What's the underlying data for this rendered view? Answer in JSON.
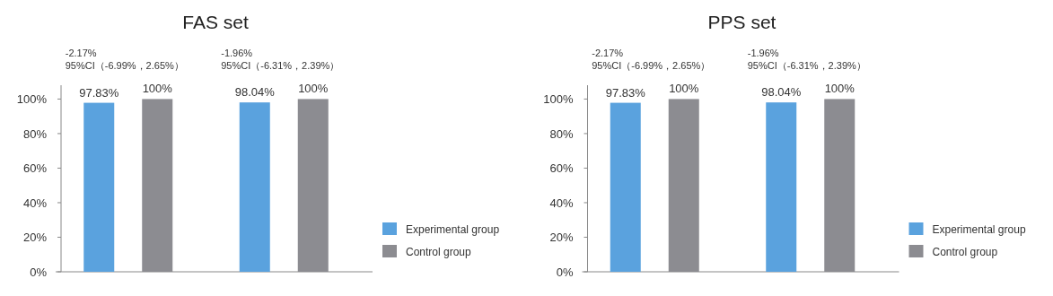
{
  "chart_data": [
    {
      "type": "bar",
      "title": "FAS set",
      "categories": [
        null,
        null
      ],
      "series": [
        {
          "name": "Experimental group",
          "color": "#5aa2de",
          "values": [
            97.83,
            98.04
          ]
        },
        {
          "name": "Control group",
          "color": "#8c8c91",
          "values": [
            100,
            100
          ]
        }
      ],
      "ylim": [
        0,
        108
      ],
      "yticks": [
        {
          "value": 0,
          "label": "0%"
        },
        {
          "value": 20,
          "label": "20%"
        },
        {
          "value": 40,
          "label": "40%"
        },
        {
          "value": 60,
          "label": "60%"
        },
        {
          "value": 80,
          "label": "80%"
        },
        {
          "value": 100,
          "label": "100%"
        }
      ],
      "value_labels": [
        [
          "97.83%",
          "98.04%"
        ],
        [
          "100%",
          "100%"
        ]
      ],
      "annotations": [
        "-2.17%\n95%CI（-6.99%，2.65%）",
        "-1.96%\n95%CI（-6.31%，2.39%）"
      ],
      "legend": "right",
      "grid": false
    },
    {
      "type": "bar",
      "title": "PPS set",
      "categories": [
        null,
        null
      ],
      "series": [
        {
          "name": "Experimental group",
          "color": "#5aa2de",
          "values": [
            97.83,
            98.04
          ]
        },
        {
          "name": "Control group",
          "color": "#8c8c91",
          "values": [
            100,
            100
          ]
        }
      ],
      "ylim": [
        0,
        108
      ],
      "yticks": [
        {
          "value": 0,
          "label": "0%"
        },
        {
          "value": 20,
          "label": "20%"
        },
        {
          "value": 40,
          "label": "40%"
        },
        {
          "value": 60,
          "label": "60%"
        },
        {
          "value": 80,
          "label": "80%"
        },
        {
          "value": 100,
          "label": "100%"
        }
      ],
      "value_labels": [
        [
          "97.83%",
          "98.04%"
        ],
        [
          "100%",
          "100%"
        ]
      ],
      "annotations": [
        "-2.17%\n95%CI（-6.99%，2.65%）",
        "-1.96%\n95%CI（-6.31%，2.39%）"
      ],
      "legend": "right",
      "grid": false
    }
  ]
}
